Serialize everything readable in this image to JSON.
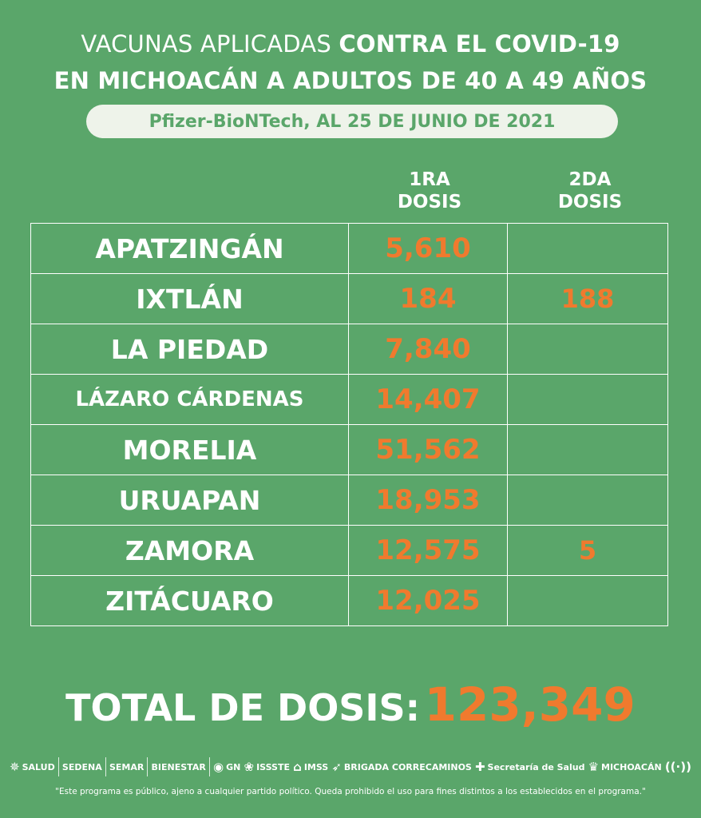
{
  "title": {
    "line1_a": "VACUNAS APLICADAS ",
    "line1_b": "CONTRA EL COVID-19",
    "line2": "EN MICHOACÁN A ADULTOS DE 40 A 49 AÑOS"
  },
  "subtitle": "Pfizer-BioNTech, AL 25 DE JUNIO DE 2021",
  "columns": {
    "dose1_a": "1RA",
    "dose1_b": "DOSIS",
    "dose2_a": "2DA",
    "dose2_b": "DOSIS"
  },
  "rows": [
    {
      "municipio": "APATZINGÁN",
      "dosis1": "5,610",
      "dosis2": ""
    },
    {
      "municipio": "IXTLÁN",
      "dosis1": "184",
      "dosis2": "188"
    },
    {
      "municipio": "LA PIEDAD",
      "dosis1": "7,840",
      "dosis2": ""
    },
    {
      "municipio": "LÁZARO CÁRDENAS",
      "dosis1": "14,407",
      "dosis2": ""
    },
    {
      "municipio": "MORELIA",
      "dosis1": "51,562",
      "dosis2": ""
    },
    {
      "municipio": "URUAPAN",
      "dosis1": "18,953",
      "dosis2": ""
    },
    {
      "municipio": "ZAMORA",
      "dosis1": "12,575",
      "dosis2": "5"
    },
    {
      "municipio": "ZITÁCUARO",
      "dosis1": "12,025",
      "dosis2": ""
    }
  ],
  "total": {
    "label": "TOTAL DE DOSIS:",
    "value": "123,349"
  },
  "logos": {
    "salud": "SALUD",
    "sedena": "SEDENA",
    "semar": "SEMAR",
    "bienestar": "BIENESTAR",
    "gn": "GN",
    "issste": "ISSSTE",
    "imss": "IMSS",
    "brigada": "BRIGADA CORRECAMINOS",
    "secretaria": "Secretaría de Salud",
    "michoacan": "MICHOACÁN"
  },
  "footer": "\"Este programa es público, ajeno a cualquier partido político. Queda prohibido el uso para fines distintos a los establecidos en el programa.\"",
  "colors": {
    "background": "#5aa66a",
    "accent": "#f07a2e",
    "pill": "#eef3ea"
  }
}
